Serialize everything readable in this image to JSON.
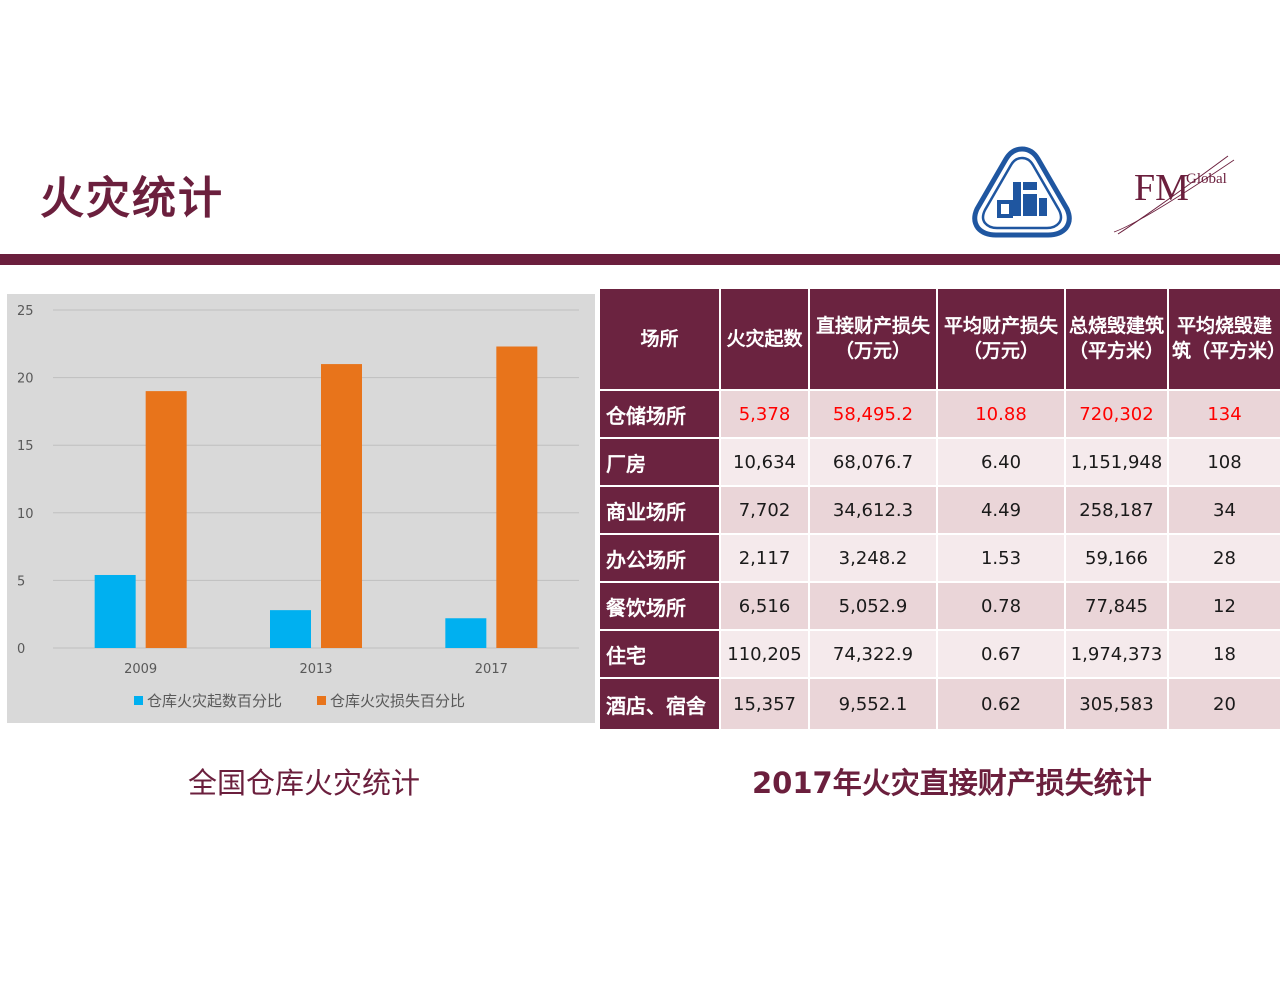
{
  "page": {
    "title": "火灾统计"
  },
  "logos": {
    "fm": {
      "main": "FM",
      "sub": "Global"
    }
  },
  "chart_data": {
    "type": "bar",
    "title": "",
    "xlabel": "",
    "ylabel": "",
    "categories": [
      "2009",
      "2013",
      "2017"
    ],
    "ylim": [
      0,
      25
    ],
    "yticks": [
      0,
      5,
      10,
      15,
      20,
      25
    ],
    "grid": true,
    "legend": "bottom",
    "series": [
      {
        "name": "仓库火灾起数百分比",
        "color": "#00b0f0",
        "values": [
          5.4,
          2.8,
          2.2
        ]
      },
      {
        "name": "仓库火灾损失百分比",
        "color": "#e8741b",
        "values": [
          19.0,
          21.0,
          22.3
        ]
      }
    ]
  },
  "table": {
    "headers": [
      "场所",
      "火灾起数",
      "直接财产损失（万元）",
      "平均财产损失（万元）",
      "总烧毁建筑（平方米）",
      "平均烧毁建筑（平方米）"
    ],
    "rows": [
      {
        "label": "仓储场所",
        "cells": [
          "5,378",
          "58,495.2",
          "10.88",
          "720,302",
          "134"
        ]
      },
      {
        "label": "厂房",
        "cells": [
          "10,634",
          "68,076.7",
          "6.40",
          "1,151,948",
          "108"
        ]
      },
      {
        "label": "商业场所",
        "cells": [
          "7,702",
          "34,612.3",
          "4.49",
          "258,187",
          "34"
        ]
      },
      {
        "label": "办公场所",
        "cells": [
          "2,117",
          "3,248.2",
          "1.53",
          "59,166",
          "28"
        ]
      },
      {
        "label": "餐饮场所",
        "cells": [
          "6,516",
          "5,052.9",
          "0.78",
          "77,845",
          "12"
        ]
      },
      {
        "label": "住宅",
        "cells": [
          "110,205",
          "74,322.9",
          "0.67",
          "1,974,373",
          "18"
        ]
      },
      {
        "label": "酒店、宿舍",
        "cells": [
          "15,357",
          "9,552.1",
          "0.62",
          "305,583",
          "20"
        ]
      }
    ]
  },
  "captions": {
    "left": "全国仓库火灾统计",
    "right": "2017年火灾直接财产损失统计"
  }
}
